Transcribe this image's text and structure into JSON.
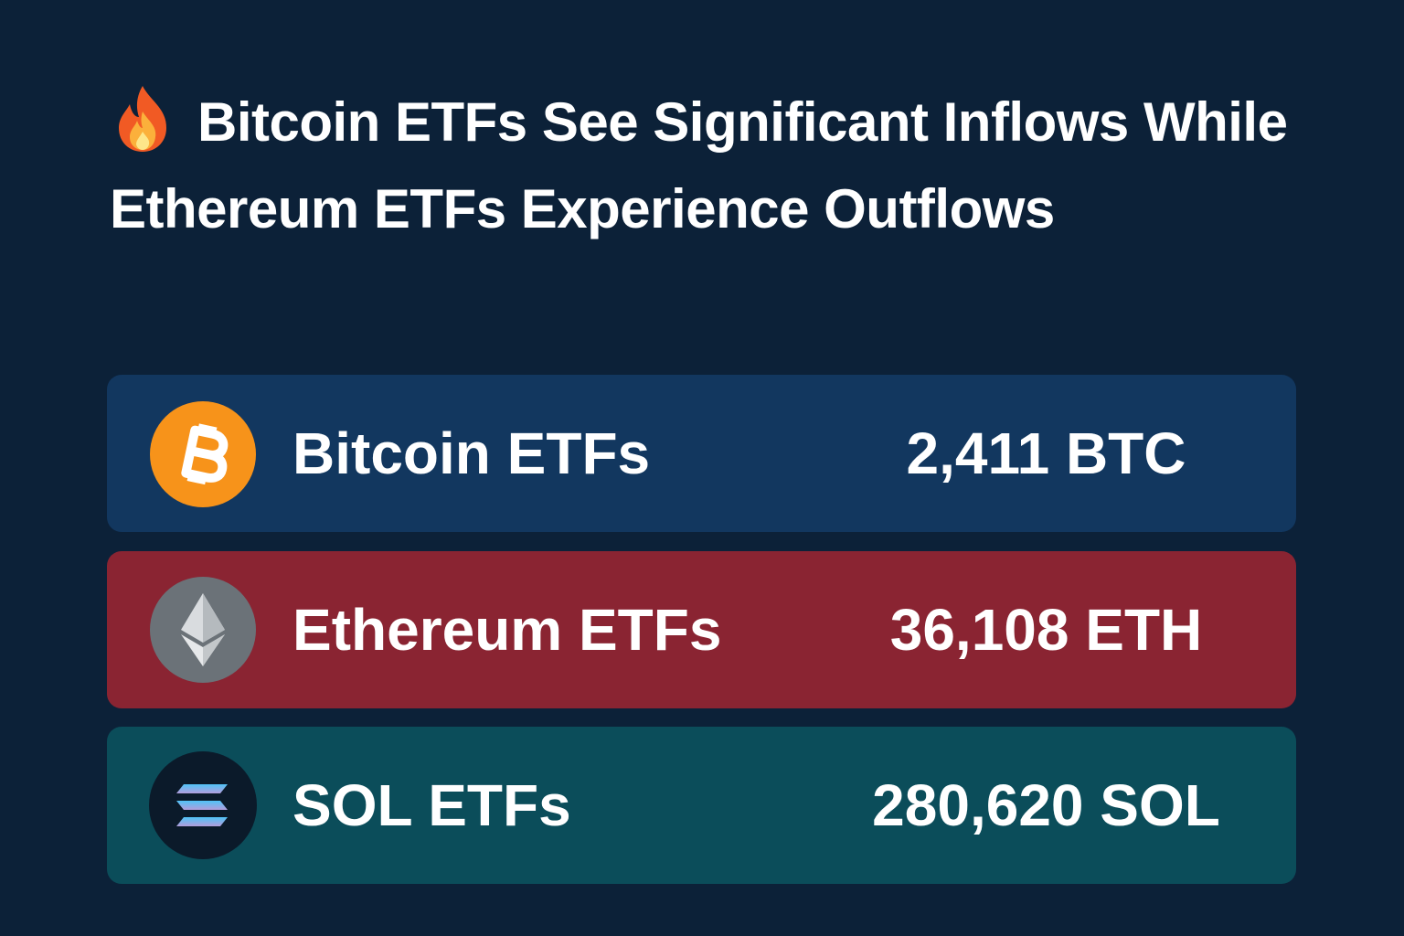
{
  "header": {
    "title": "Bitcoin ETFs See Significant Inflows While Ethereum ETFs Experience Outflows"
  },
  "rows": [
    {
      "label": "Bitcoin ETFs",
      "value": "2,411 BTC"
    },
    {
      "label": "Ethereum ETFs",
      "value": "36,108 ETH"
    },
    {
      "label": "SOL ETFs",
      "value": "280,620 SOL"
    }
  ]
}
